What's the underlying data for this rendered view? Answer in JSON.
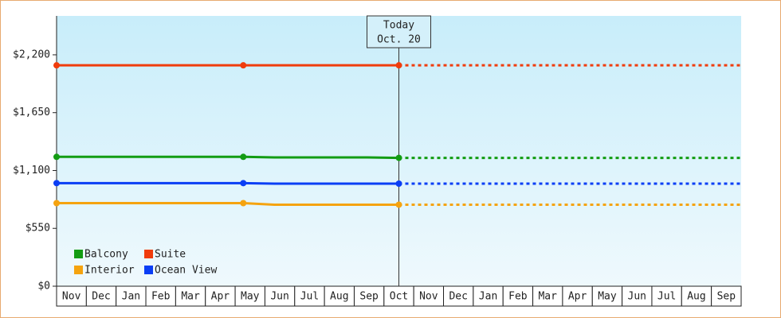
{
  "chart_data": {
    "type": "line",
    "categories": [
      "Nov",
      "Dec",
      "Jan",
      "Feb",
      "Mar",
      "Apr",
      "May",
      "Jun",
      "Jul",
      "Aug",
      "Sep",
      "Oct",
      "Nov",
      "Dec",
      "Jan",
      "Feb",
      "Mar",
      "Apr",
      "May",
      "Jun",
      "Jul",
      "Aug",
      "Sep"
    ],
    "series": [
      {
        "name": "Balcony",
        "color": "#139c13",
        "values": [
          1230,
          1230,
          1230,
          1230,
          1230,
          1230,
          1230,
          1225,
          1225,
          1225,
          1225,
          1220,
          1220,
          1220,
          1220,
          1220,
          1220,
          1220,
          1220,
          1220,
          1220,
          1220,
          1220
        ]
      },
      {
        "name": "Suite",
        "color": "#f03c0c",
        "values": [
          2100,
          2100,
          2100,
          2100,
          2100,
          2100,
          2100,
          2100,
          2100,
          2100,
          2100,
          2100,
          2100,
          2100,
          2100,
          2100,
          2100,
          2100,
          2100,
          2100,
          2100,
          2100,
          2100
        ]
      },
      {
        "name": "Interior",
        "color": "#f5a30f",
        "values": [
          790,
          790,
          790,
          790,
          790,
          790,
          790,
          775,
          775,
          775,
          775,
          775,
          775,
          775,
          775,
          775,
          775,
          775,
          775,
          775,
          775,
          775,
          775
        ]
      },
      {
        "name": "Ocean View",
        "color": "#0a3ef5",
        "values": [
          980,
          980,
          980,
          980,
          980,
          980,
          980,
          975,
          975,
          975,
          975,
          975,
          975,
          975,
          975,
          975,
          975,
          975,
          975,
          975,
          975,
          975,
          975
        ]
      }
    ],
    "markers": [
      0,
      6,
      11
    ],
    "annotation": {
      "lines": [
        "Today",
        "Oct. 20"
      ],
      "category_index": 11
    },
    "ylim": [
      0,
      2570
    ],
    "yticks": [
      {
        "value": 0,
        "label": "$0"
      },
      {
        "value": 550,
        "label": "$550"
      },
      {
        "value": 1100,
        "label": "$1,100"
      },
      {
        "value": 1650,
        "label": "$1,650"
      },
      {
        "value": 2200,
        "label": "$2,200"
      }
    ]
  }
}
